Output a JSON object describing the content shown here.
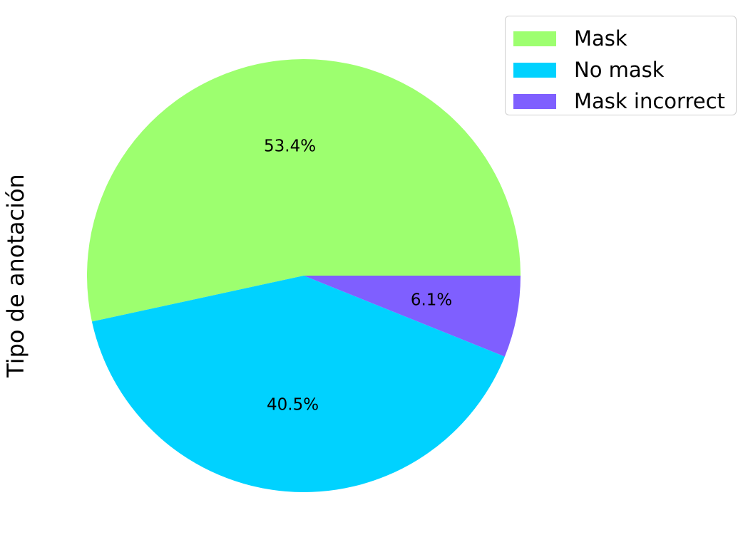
{
  "chart_data": {
    "type": "pie",
    "ylabel": "Tipo de anotación",
    "slices": [
      {
        "label": "Mask",
        "value": 53.4,
        "pct_label": "53.4%",
        "color": "#9dff6f"
      },
      {
        "label": "No mask",
        "value": 40.5,
        "pct_label": "40.5%",
        "color": "#00d2ff"
      },
      {
        "label": "Mask incorrect",
        "value": 6.1,
        "pct_label": "6.1%",
        "color": "#7f5fff"
      }
    ],
    "start_angle_deg": 0,
    "direction": "counterclockwise",
    "legend_position": "top-right"
  }
}
